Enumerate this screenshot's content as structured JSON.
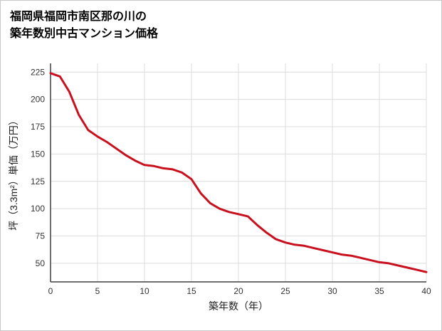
{
  "title": {
    "line1": "福岡県福岡市南区那の川の",
    "line2": "築年数別中古マンション価格"
  },
  "chart_data": {
    "type": "line",
    "title": "福岡県福岡市南区那の川の築年数別中古マンション価格",
    "xlabel": "築年数（年）",
    "ylabel": "坪（3.3m²）単価（万円）",
    "x": [
      0,
      1,
      2,
      3,
      4,
      5,
      6,
      7,
      8,
      9,
      10,
      11,
      12,
      13,
      14,
      15,
      16,
      17,
      18,
      19,
      20,
      21,
      22,
      23,
      24,
      25,
      26,
      27,
      28,
      29,
      30,
      31,
      32,
      33,
      34,
      35,
      36,
      37,
      38,
      39,
      40
    ],
    "values": [
      224,
      221,
      207,
      186,
      172,
      166,
      161,
      155,
      149,
      144,
      140,
      139,
      137,
      136,
      133,
      127,
      114,
      105,
      100,
      97,
      95,
      93,
      85,
      78,
      72,
      69,
      67,
      66,
      64,
      62,
      60,
      58,
      57,
      55,
      53,
      51,
      50,
      48,
      46,
      44,
      42
    ],
    "xlim": [
      0,
      40
    ],
    "ylim": [
      33,
      233
    ],
    "x_ticks": [
      0,
      5,
      10,
      15,
      20,
      25,
      30,
      35,
      40
    ],
    "y_ticks": [
      50,
      75,
      100,
      125,
      150,
      175,
      200,
      225
    ],
    "grid": true,
    "legend": "none",
    "line_color": "#c9101e",
    "grid_color": "#dcdcdc",
    "axis_color": "#3f3f3f"
  }
}
